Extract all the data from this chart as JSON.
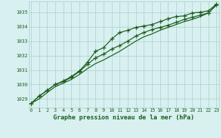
{
  "x": [
    0,
    1,
    2,
    3,
    4,
    5,
    6,
    7,
    8,
    9,
    10,
    11,
    12,
    13,
    14,
    15,
    16,
    17,
    18,
    19,
    20,
    21,
    22,
    23
  ],
  "line1": [
    1028.7,
    1029.2,
    1029.6,
    1030.0,
    1030.25,
    1030.55,
    1030.95,
    1031.55,
    1032.3,
    1032.55,
    1033.15,
    1033.6,
    1033.75,
    1033.95,
    1034.05,
    1034.15,
    1034.35,
    1034.55,
    1034.7,
    1034.75,
    1034.95,
    1035.0,
    1035.1,
    1035.55
  ],
  "line2": [
    1028.7,
    1029.2,
    1029.6,
    1030.0,
    1030.2,
    1030.5,
    1030.9,
    1031.4,
    1031.85,
    1032.1,
    1032.45,
    1032.7,
    1033.0,
    1033.35,
    1033.6,
    1033.8,
    1033.95,
    1034.1,
    1034.3,
    1034.5,
    1034.65,
    1034.8,
    1034.95,
    1035.5
  ],
  "line3": [
    1028.7,
    1029.0,
    1029.45,
    1029.85,
    1030.1,
    1030.35,
    1030.7,
    1031.1,
    1031.45,
    1031.7,
    1032.0,
    1032.3,
    1032.65,
    1033.0,
    1033.3,
    1033.5,
    1033.75,
    1033.95,
    1034.15,
    1034.35,
    1034.5,
    1034.7,
    1034.95,
    1035.5
  ],
  "bg_color": "#d8f0f0",
  "grid_color": "#aacccc",
  "line_color": "#1a5c1a",
  "label_color": "#1a5c1a",
  "xlabel": "Graphe pression niveau de la mer (hPa)",
  "ylim": [
    1028.4,
    1035.75
  ],
  "yticks": [
    1029,
    1030,
    1031,
    1032,
    1033,
    1034,
    1035
  ],
  "xticks": [
    0,
    1,
    2,
    3,
    4,
    5,
    6,
    7,
    8,
    9,
    10,
    11,
    12,
    13,
    14,
    15,
    16,
    17,
    18,
    19,
    20,
    21,
    22,
    23
  ]
}
